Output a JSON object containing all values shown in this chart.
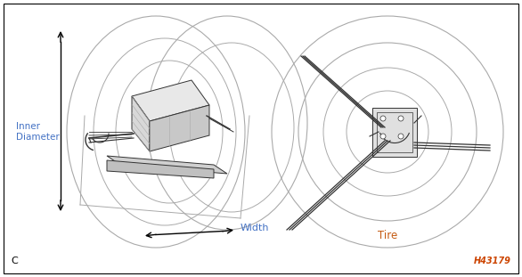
{
  "background_color": "#ffffff",
  "border_color": "#000000",
  "label_inner_diameter": "Inner\nDiameter",
  "label_width": "Width",
  "label_tire": "Tire",
  "label_c": "C",
  "label_id": "H43179",
  "label_color_blue": "#4472C4",
  "label_color_orange": "#C55A11",
  "label_color_black": "#000000",
  "label_color_gray": "#888888",
  "fig_width": 5.86,
  "fig_height": 3.11,
  "dpi": 100
}
